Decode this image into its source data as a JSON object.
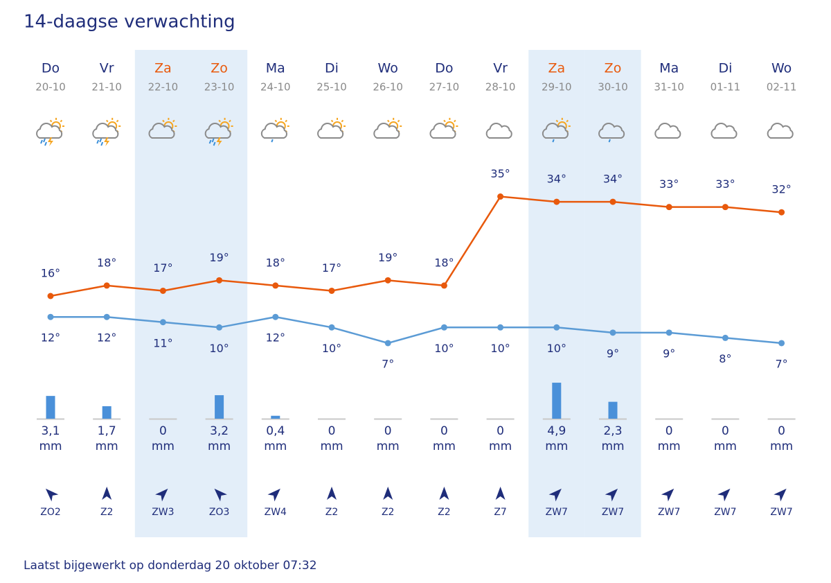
{
  "header": {
    "title": "14-daagse verwachting"
  },
  "days": [
    {
      "day": "Do",
      "date": "20-10",
      "weekend": false,
      "icon": "thunder",
      "high": 16,
      "high_label": "16°",
      "low": 12,
      "low_label": "12°",
      "rain": 3.1,
      "rain_label": "3,1",
      "rain_unit": "mm",
      "wind": "ZO2"
    },
    {
      "day": "Vr",
      "date": "21-10",
      "weekend": false,
      "icon": "thunder",
      "high": 18,
      "high_label": "18°",
      "low": 12,
      "low_label": "12°",
      "rain": 1.7,
      "rain_label": "1,7",
      "rain_unit": "mm",
      "wind": "Z2"
    },
    {
      "day": "Za",
      "date": "22-10",
      "weekend": true,
      "icon": "partly",
      "high": 17,
      "high_label": "17°",
      "low": 11,
      "low_label": "11°",
      "rain": 0,
      "rain_label": "0",
      "rain_unit": "mm",
      "wind": "ZW3"
    },
    {
      "day": "Zo",
      "date": "23-10",
      "weekend": true,
      "icon": "thunder",
      "high": 19,
      "high_label": "19°",
      "low": 10,
      "low_label": "10°",
      "rain": 3.2,
      "rain_label": "3,2",
      "rain_unit": "mm",
      "wind": "ZO3"
    },
    {
      "day": "Ma",
      "date": "24-10",
      "weekend": false,
      "icon": "rain-sun",
      "high": 18,
      "high_label": "18°",
      "low": 12,
      "low_label": "12°",
      "rain": 0.4,
      "rain_label": "0,4",
      "rain_unit": "mm",
      "wind": "ZW4"
    },
    {
      "day": "Di",
      "date": "25-10",
      "weekend": false,
      "icon": "partly",
      "high": 17,
      "high_label": "17°",
      "low": 10,
      "low_label": "10°",
      "rain": 0,
      "rain_label": "0",
      "rain_unit": "mm",
      "wind": "Z2"
    },
    {
      "day": "Wo",
      "date": "26-10",
      "weekend": false,
      "icon": "partly",
      "high": 19,
      "high_label": "19°",
      "low": 7,
      "low_label": "7°",
      "rain": 0,
      "rain_label": "0",
      "rain_unit": "mm",
      "wind": "Z2"
    },
    {
      "day": "Do",
      "date": "27-10",
      "weekend": false,
      "icon": "partly",
      "high": 18,
      "high_label": "18°",
      "low": 10,
      "low_label": "10°",
      "rain": 0,
      "rain_label": "0",
      "rain_unit": "mm",
      "wind": "Z2"
    },
    {
      "day": "Vr",
      "date": "28-10",
      "weekend": false,
      "icon": "cloud",
      "high": 35,
      "high_label": "35°",
      "low": 10,
      "low_label": "10°",
      "rain": 0,
      "rain_label": "0",
      "rain_unit": "mm",
      "wind": "Z7"
    },
    {
      "day": "Za",
      "date": "29-10",
      "weekend": true,
      "icon": "rain-sun",
      "high": 34,
      "high_label": "34°",
      "low": 10,
      "low_label": "10°",
      "rain": 4.9,
      "rain_label": "4,9",
      "rain_unit": "mm",
      "wind": "ZW7"
    },
    {
      "day": "Zo",
      "date": "30-10",
      "weekend": true,
      "icon": "rain",
      "high": 34,
      "high_label": "34°",
      "low": 9,
      "low_label": "9°",
      "rain": 2.3,
      "rain_label": "2,3",
      "rain_unit": "mm",
      "wind": "ZW7"
    },
    {
      "day": "Ma",
      "date": "31-10",
      "weekend": false,
      "icon": "cloud",
      "high": 33,
      "high_label": "33°",
      "low": 9,
      "low_label": "9°",
      "rain": 0,
      "rain_label": "0",
      "rain_unit": "mm",
      "wind": "ZW7"
    },
    {
      "day": "Di",
      "date": "01-11",
      "weekend": false,
      "icon": "cloud",
      "high": 33,
      "high_label": "33°",
      "low": 8,
      "low_label": "8°",
      "rain": 0,
      "rain_label": "0",
      "rain_unit": "mm",
      "wind": "ZW7"
    },
    {
      "day": "Wo",
      "date": "02-11",
      "weekend": false,
      "icon": "cloud",
      "high": 32,
      "high_label": "32°",
      "low": 7,
      "low_label": "7°",
      "rain": 0,
      "rain_label": "0",
      "rain_unit": "mm",
      "wind": "ZW7"
    }
  ],
  "footer": {
    "text": "Laatst bijgewerkt op donderdag 20 oktober 07:32"
  }
}
